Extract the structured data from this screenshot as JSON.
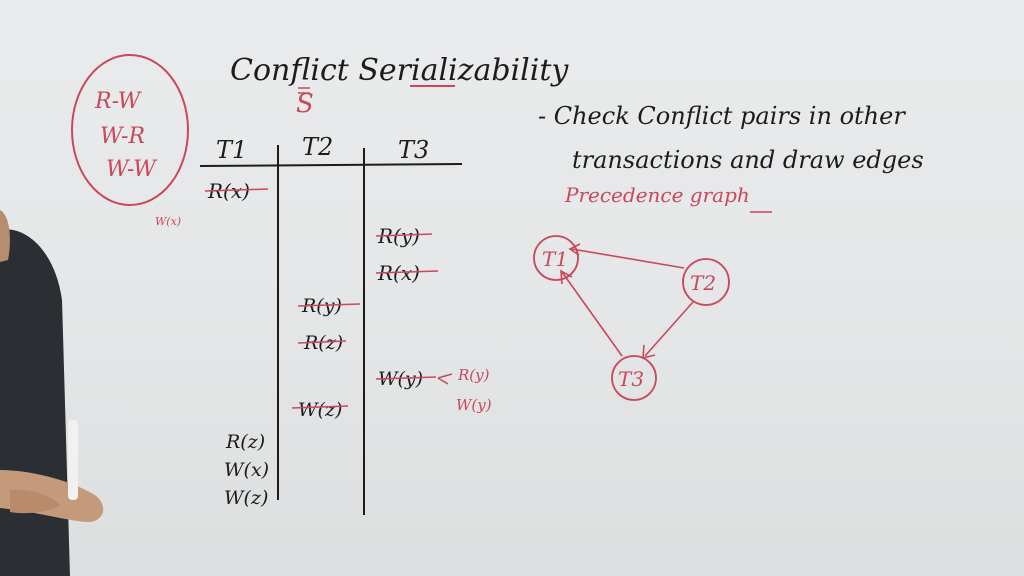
{
  "title": "Conflict Serializability",
  "schedule_label": "S",
  "conflict_types": [
    "R-W",
    "W-R",
    "W-W"
  ],
  "small_note": "W(x)",
  "table": {
    "headers": [
      "T1",
      "T2",
      "T3"
    ],
    "t1_ops_top": [
      "R(x)"
    ],
    "t3_ops_a": [
      "R(y)",
      "R(x)"
    ],
    "t2_ops": [
      "R(y)",
      "R(z)"
    ],
    "t3_op_write": "W(y)",
    "arrow_notes": [
      "R(y)",
      "W(y)"
    ],
    "t2_op_write": "W(z)",
    "t1_ops_bottom": [
      "R(z)",
      "W(x)",
      "W(z)"
    ]
  },
  "instructions": {
    "line1": "- Check Conflict pairs in other",
    "line2": "transactions and draw edges",
    "line3": "Precedence graph"
  },
  "graph": {
    "nodes": [
      "T1",
      "T2",
      "T3"
    ],
    "edges": [
      {
        "from": "T2",
        "to": "T1"
      },
      {
        "from": "T3",
        "to": "T1"
      },
      {
        "from": "T2",
        "to": "T3"
      }
    ]
  },
  "colors": {
    "black_ink": "#1c1c1c",
    "red_ink": "#c9485a",
    "board": "#e6e8e9"
  }
}
